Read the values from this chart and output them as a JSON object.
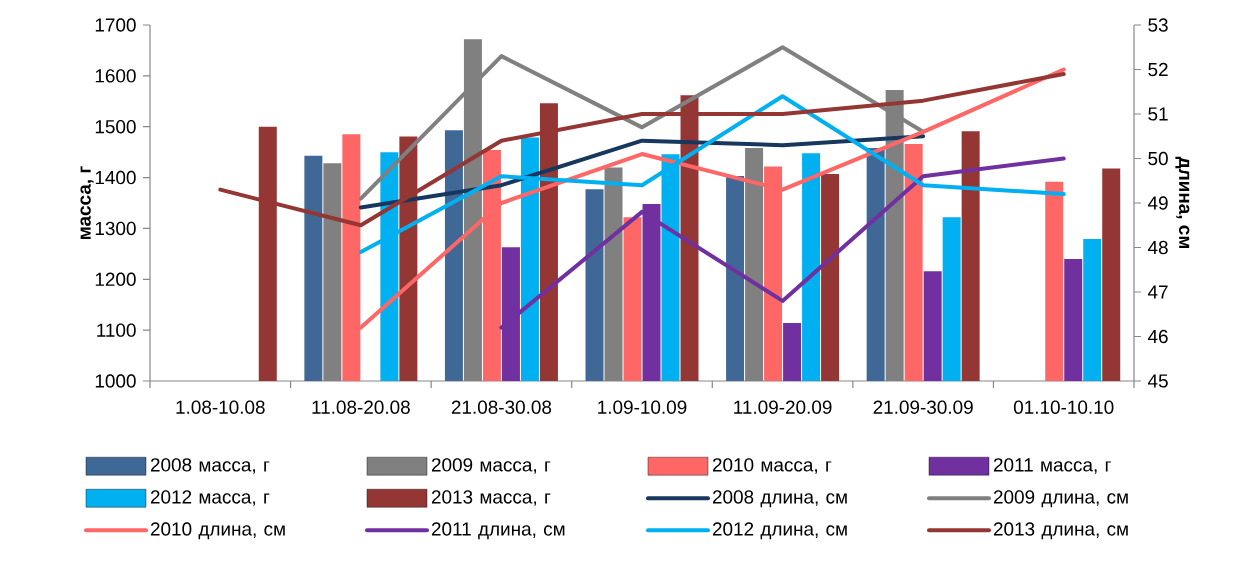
{
  "chart_data": {
    "type": "bar",
    "ylabel": "масса, г",
    "y2label": "длина, см",
    "categories": [
      "1.08-10.08",
      "11.08-20.08",
      "21.08-30.08",
      "1.09-10.09",
      "11.09-20.09",
      "21.09-30.09",
      "01.10-10.10"
    ],
    "ylim": [
      1000,
      1700
    ],
    "yticks": [
      1000,
      1100,
      1200,
      1300,
      1400,
      1500,
      1600,
      1700
    ],
    "y2lim": [
      45,
      53
    ],
    "y2ticks": [
      45,
      46,
      47,
      48,
      49,
      50,
      51,
      52,
      53
    ],
    "legend": "bottom",
    "series": [
      {
        "name": "2008 масса, г",
        "color": "#3f6897",
        "values": [
          null,
          1443,
          1493,
          1377,
          1403,
          1458,
          null
        ]
      },
      {
        "name": "2009 масса, г",
        "color": "#808080",
        "values": [
          null,
          1428,
          1672,
          1420,
          1458,
          1572,
          null
        ]
      },
      {
        "name": "2010 масса, г",
        "color": "#ff6666",
        "values": [
          null,
          1485,
          1454,
          1322,
          1422,
          1466,
          1392
        ]
      },
      {
        "name": "2011 масса, г",
        "color": "#7030a0",
        "values": [
          null,
          null,
          1263,
          1348,
          1114,
          1216,
          1240
        ]
      },
      {
        "name": "2012 масса, г",
        "color": "#00b0f0",
        "values": [
          null,
          1450,
          1479,
          1446,
          1448,
          1322,
          1279
        ]
      },
      {
        "name": "2013 масса, г",
        "color": "#943634",
        "values": [
          1500,
          1481,
          1546,
          1562,
          1407,
          1491,
          1418
        ]
      },
      {
        "name": "2008 длина, см",
        "type": "line",
        "axis": "y2",
        "color": "#17375e",
        "values": [
          null,
          48.9,
          49.4,
          50.4,
          50.3,
          50.5,
          null
        ]
      },
      {
        "name": "2009 длина, см",
        "type": "line",
        "axis": "y2",
        "color": "#808080",
        "values": [
          null,
          49.1,
          52.3,
          50.7,
          52.5,
          50.6,
          null
        ]
      },
      {
        "name": "2010 длина, см",
        "type": "line",
        "axis": "y2",
        "color": "#ff6666",
        "values": [
          null,
          46.2,
          49.0,
          50.1,
          49.3,
          50.6,
          52.0
        ]
      },
      {
        "name": "2011 длина, см",
        "type": "line",
        "axis": "y2",
        "color": "#7030a0",
        "values": [
          null,
          null,
          46.2,
          48.8,
          46.8,
          49.6,
          50.0
        ]
      },
      {
        "name": "2012 длина, см",
        "type": "line",
        "axis": "y2",
        "color": "#00b0f0",
        "values": [
          null,
          47.9,
          49.6,
          49.4,
          51.4,
          49.4,
          49.2
        ]
      },
      {
        "name": "2013 длина, см",
        "type": "line",
        "axis": "y2",
        "color": "#943634",
        "values": [
          49.3,
          48.5,
          50.4,
          51.0,
          51.0,
          51.3,
          51.9
        ]
      }
    ]
  }
}
